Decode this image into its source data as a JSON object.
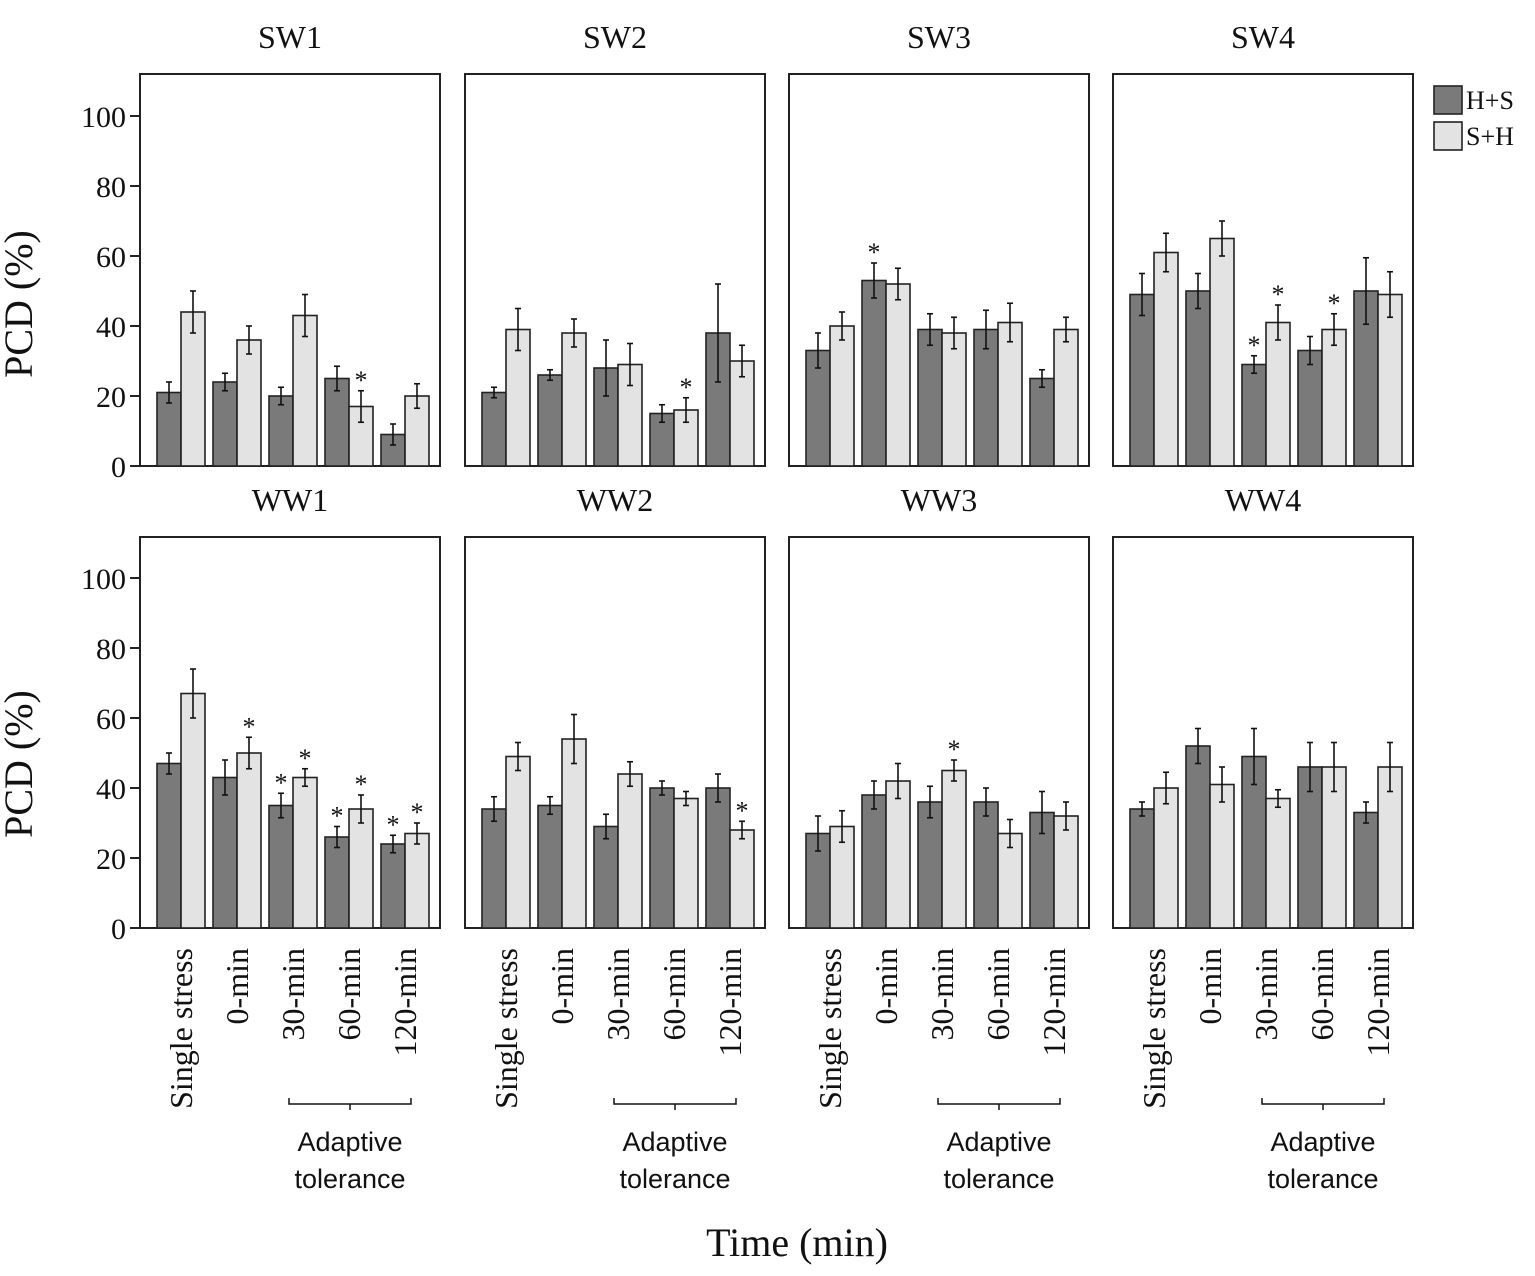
{
  "figure": {
    "xlabel": "Time (min)",
    "ylabel": "PCD (%)",
    "bracket_label_line1": "Adaptive",
    "bracket_label_line2": "tolerance"
  },
  "legend": [
    {
      "name": "H+S",
      "color": "#7a7a7a"
    },
    {
      "name": "S+H",
      "color": "#e3e3e3"
    }
  ],
  "colors": {
    "hs": "#7a7a7a",
    "sh": "#e3e3e3",
    "axis": "#222222"
  },
  "chart_data": [
    {
      "type": "bar",
      "title": "SW1",
      "categories": [
        "Single stress",
        "0-min",
        "30-min",
        "60-min",
        "120-min"
      ],
      "ylim": [
        0,
        100
      ],
      "yticks": [
        0,
        20,
        40,
        60,
        80,
        100
      ],
      "ylabel": "PCD (%)",
      "series": [
        {
          "name": "H+S",
          "values": [
            21,
            24,
            20,
            25,
            9
          ],
          "errors": [
            3,
            2.5,
            2.5,
            3.5,
            3
          ],
          "sig": [
            false,
            false,
            false,
            false,
            false
          ]
        },
        {
          "name": "S+H",
          "values": [
            44,
            36,
            43,
            17,
            20
          ],
          "errors": [
            6,
            4,
            6,
            4.5,
            3.5
          ],
          "sig": [
            false,
            false,
            false,
            true,
            false
          ]
        }
      ]
    },
    {
      "type": "bar",
      "title": "SW2",
      "categories": [
        "Single stress",
        "0-min",
        "30-min",
        "60-min",
        "120-min"
      ],
      "ylim": [
        0,
        100
      ],
      "yticks": [
        0,
        20,
        40,
        60,
        80,
        100
      ],
      "series": [
        {
          "name": "H+S",
          "values": [
            21,
            26,
            28,
            15,
            38
          ],
          "errors": [
            1.5,
            1.5,
            8,
            2.5,
            14
          ],
          "sig": [
            false,
            false,
            false,
            false,
            false
          ]
        },
        {
          "name": "S+H",
          "values": [
            39,
            38,
            29,
            16,
            30
          ],
          "errors": [
            6,
            4,
            6,
            3.5,
            4.5
          ],
          "sig": [
            false,
            false,
            false,
            true,
            false
          ]
        }
      ]
    },
    {
      "type": "bar",
      "title": "SW3",
      "categories": [
        "Single stress",
        "0-min",
        "30-min",
        "60-min",
        "120-min"
      ],
      "ylim": [
        0,
        100
      ],
      "yticks": [
        0,
        20,
        40,
        60,
        80,
        100
      ],
      "series": [
        {
          "name": "H+S",
          "values": [
            33,
            53,
            39,
            39,
            25
          ],
          "errors": [
            5,
            5,
            4.5,
            5.5,
            2.5
          ],
          "sig": [
            false,
            true,
            false,
            false,
            false
          ]
        },
        {
          "name": "S+H",
          "values": [
            40,
            52,
            38,
            41,
            39
          ],
          "errors": [
            4,
            4.5,
            4.5,
            5.5,
            3.5
          ],
          "sig": [
            false,
            false,
            false,
            false,
            false
          ]
        }
      ]
    },
    {
      "type": "bar",
      "title": "SW4",
      "categories": [
        "Single stress",
        "0-min",
        "30-min",
        "60-min",
        "120-min"
      ],
      "ylim": [
        0,
        100
      ],
      "yticks": [
        0,
        20,
        40,
        60,
        80,
        100
      ],
      "series": [
        {
          "name": "H+S",
          "values": [
            49,
            50,
            29,
            33,
            50
          ],
          "errors": [
            6,
            5,
            2.5,
            4,
            9.5
          ],
          "sig": [
            false,
            false,
            true,
            false,
            false
          ]
        },
        {
          "name": "S+H",
          "values": [
            61,
            65,
            41,
            39,
            49
          ],
          "errors": [
            5.5,
            5,
            5,
            4.5,
            6.5
          ],
          "sig": [
            false,
            false,
            true,
            true,
            false
          ]
        }
      ]
    },
    {
      "type": "bar",
      "title": "WW1",
      "categories": [
        "Single stress",
        "0-min",
        "30-min",
        "60-min",
        "120-min"
      ],
      "ylim": [
        0,
        100
      ],
      "yticks": [
        0,
        20,
        40,
        60,
        80,
        100
      ],
      "ylabel": "PCD (%)",
      "series": [
        {
          "name": "H+S",
          "values": [
            47,
            43,
            35,
            26,
            24
          ],
          "errors": [
            3,
            5,
            3.5,
            3,
            2.5
          ],
          "sig": [
            false,
            false,
            true,
            true,
            true
          ]
        },
        {
          "name": "S+H",
          "values": [
            67,
            50,
            43,
            34,
            27
          ],
          "errors": [
            7,
            4.5,
            2.5,
            4,
            3
          ],
          "sig": [
            false,
            true,
            true,
            true,
            true
          ]
        }
      ]
    },
    {
      "type": "bar",
      "title": "WW2",
      "categories": [
        "Single stress",
        "0-min",
        "30-min",
        "60-min",
        "120-min"
      ],
      "ylim": [
        0,
        100
      ],
      "yticks": [
        0,
        20,
        40,
        60,
        80,
        100
      ],
      "series": [
        {
          "name": "H+S",
          "values": [
            34,
            35,
            29,
            40,
            40
          ],
          "errors": [
            3.5,
            2.5,
            3.5,
            2,
            4
          ],
          "sig": [
            false,
            false,
            false,
            false,
            false
          ]
        },
        {
          "name": "S+H",
          "values": [
            49,
            54,
            44,
            37,
            28
          ],
          "errors": [
            4,
            7,
            3.5,
            2,
            2.5
          ],
          "sig": [
            false,
            false,
            false,
            false,
            true
          ]
        }
      ]
    },
    {
      "type": "bar",
      "title": "WW3",
      "categories": [
        "Single stress",
        "0-min",
        "30-min",
        "60-min",
        "120-min"
      ],
      "ylim": [
        0,
        100
      ],
      "yticks": [
        0,
        20,
        40,
        60,
        80,
        100
      ],
      "series": [
        {
          "name": "H+S",
          "values": [
            27,
            38,
            36,
            36,
            33
          ],
          "errors": [
            5,
            4,
            4.5,
            4,
            6
          ],
          "sig": [
            false,
            false,
            false,
            false,
            false
          ]
        },
        {
          "name": "S+H",
          "values": [
            29,
            42,
            45,
            27,
            32
          ],
          "errors": [
            4.5,
            5,
            3,
            4,
            4
          ],
          "sig": [
            false,
            false,
            true,
            false,
            false
          ]
        }
      ]
    },
    {
      "type": "bar",
      "title": "WW4",
      "categories": [
        "Single stress",
        "0-min",
        "30-min",
        "60-min",
        "120-min"
      ],
      "ylim": [
        0,
        100
      ],
      "yticks": [
        0,
        20,
        40,
        60,
        80,
        100
      ],
      "series": [
        {
          "name": "H+S",
          "values": [
            34,
            52,
            49,
            46,
            33
          ],
          "errors": [
            2,
            5,
            8,
            7,
            3
          ],
          "sig": [
            false,
            false,
            false,
            false,
            false
          ]
        },
        {
          "name": "S+H",
          "values": [
            40,
            41,
            37,
            46,
            46
          ],
          "errors": [
            4.5,
            5,
            2.5,
            7,
            7
          ],
          "sig": [
            false,
            false,
            false,
            false,
            false
          ]
        }
      ]
    }
  ]
}
